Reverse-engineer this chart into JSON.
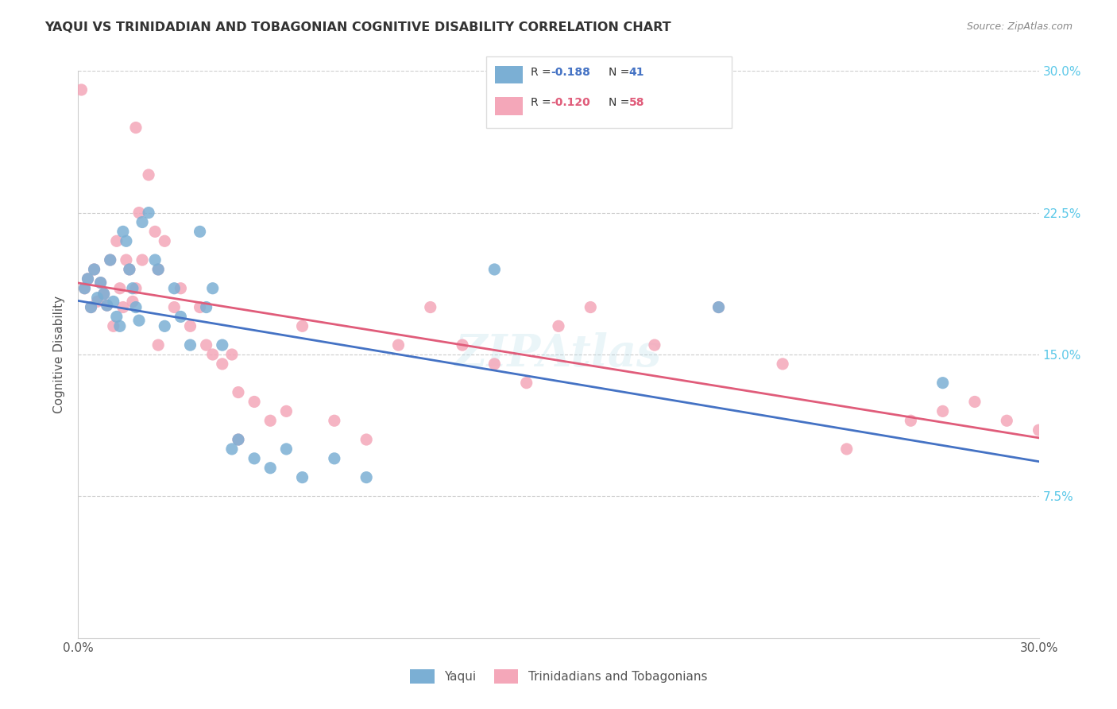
{
  "title": "YAQUI VS TRINIDADIAN AND TOBAGONIAN COGNITIVE DISABILITY CORRELATION CHART",
  "source": "Source: ZipAtlas.com",
  "ylabel": "Cognitive Disability",
  "xlim": [
    0.0,
    0.3
  ],
  "ylim": [
    0.0,
    0.3
  ],
  "yticks": [
    0.075,
    0.15,
    0.225,
    0.3
  ],
  "ytick_labels": [
    "7.5%",
    "15.0%",
    "22.5%",
    "30.0%"
  ],
  "color_blue": "#7bafd4",
  "color_pink": "#f4a7b9",
  "color_blue_line": "#4472c4",
  "color_pink_line": "#e05c7a",
  "color_right_axis": "#5bc8e8",
  "yaqui_x": [
    0.002,
    0.003,
    0.004,
    0.005,
    0.006,
    0.007,
    0.008,
    0.009,
    0.01,
    0.011,
    0.012,
    0.013,
    0.014,
    0.015,
    0.016,
    0.017,
    0.018,
    0.019,
    0.02,
    0.022,
    0.024,
    0.025,
    0.027,
    0.03,
    0.032,
    0.035,
    0.038,
    0.04,
    0.042,
    0.045,
    0.048,
    0.05,
    0.055,
    0.06,
    0.065,
    0.07,
    0.08,
    0.09,
    0.13,
    0.2,
    0.27
  ],
  "yaqui_y": [
    0.185,
    0.19,
    0.175,
    0.195,
    0.18,
    0.188,
    0.182,
    0.176,
    0.2,
    0.178,
    0.17,
    0.165,
    0.215,
    0.21,
    0.195,
    0.185,
    0.175,
    0.168,
    0.22,
    0.225,
    0.2,
    0.195,
    0.165,
    0.185,
    0.17,
    0.155,
    0.215,
    0.175,
    0.185,
    0.155,
    0.1,
    0.105,
    0.095,
    0.09,
    0.1,
    0.085,
    0.095,
    0.085,
    0.195,
    0.175,
    0.135
  ],
  "tnt_x": [
    0.001,
    0.002,
    0.003,
    0.004,
    0.005,
    0.006,
    0.007,
    0.008,
    0.009,
    0.01,
    0.011,
    0.012,
    0.013,
    0.014,
    0.015,
    0.016,
    0.017,
    0.018,
    0.019,
    0.02,
    0.022,
    0.024,
    0.025,
    0.027,
    0.03,
    0.032,
    0.035,
    0.038,
    0.04,
    0.042,
    0.045,
    0.048,
    0.05,
    0.055,
    0.06,
    0.065,
    0.07,
    0.08,
    0.09,
    0.1,
    0.11,
    0.12,
    0.13,
    0.14,
    0.15,
    0.16,
    0.18,
    0.2,
    0.22,
    0.24,
    0.26,
    0.27,
    0.28,
    0.29,
    0.3,
    0.018,
    0.025,
    0.05
  ],
  "tnt_y": [
    0.29,
    0.185,
    0.19,
    0.175,
    0.195,
    0.178,
    0.188,
    0.182,
    0.176,
    0.2,
    0.165,
    0.21,
    0.185,
    0.175,
    0.2,
    0.195,
    0.178,
    0.185,
    0.225,
    0.2,
    0.245,
    0.215,
    0.195,
    0.21,
    0.175,
    0.185,
    0.165,
    0.175,
    0.155,
    0.15,
    0.145,
    0.15,
    0.13,
    0.125,
    0.115,
    0.12,
    0.165,
    0.115,
    0.105,
    0.155,
    0.175,
    0.155,
    0.145,
    0.135,
    0.165,
    0.175,
    0.155,
    0.175,
    0.145,
    0.1,
    0.115,
    0.12,
    0.125,
    0.115,
    0.11,
    0.27,
    0.155,
    0.105
  ]
}
